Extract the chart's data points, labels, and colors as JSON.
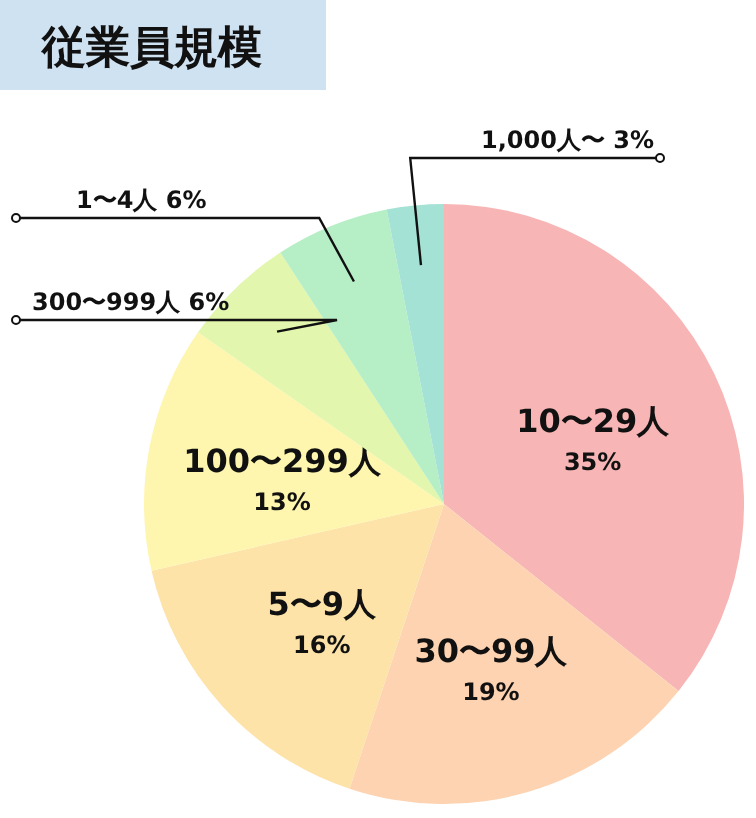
{
  "chart_data": {
    "type": "pie",
    "title": "従業員規模",
    "categories": [
      "10〜29人",
      "30〜99人",
      "5〜9人",
      "100〜299人",
      "300〜999人",
      "1〜4人",
      "1,000人〜"
    ],
    "values": [
      35,
      19,
      16,
      13,
      6,
      6,
      3
    ],
    "value_labels": [
      "35%",
      "19%",
      "16%",
      "13%",
      "6%",
      "6%",
      "3%"
    ],
    "colors": [
      "#f7b5b5",
      "#fdd3b2",
      "#fde3a8",
      "#fef6ae",
      "#e2f6ad",
      "#b6efc6",
      "#a3e2d4"
    ]
  }
}
